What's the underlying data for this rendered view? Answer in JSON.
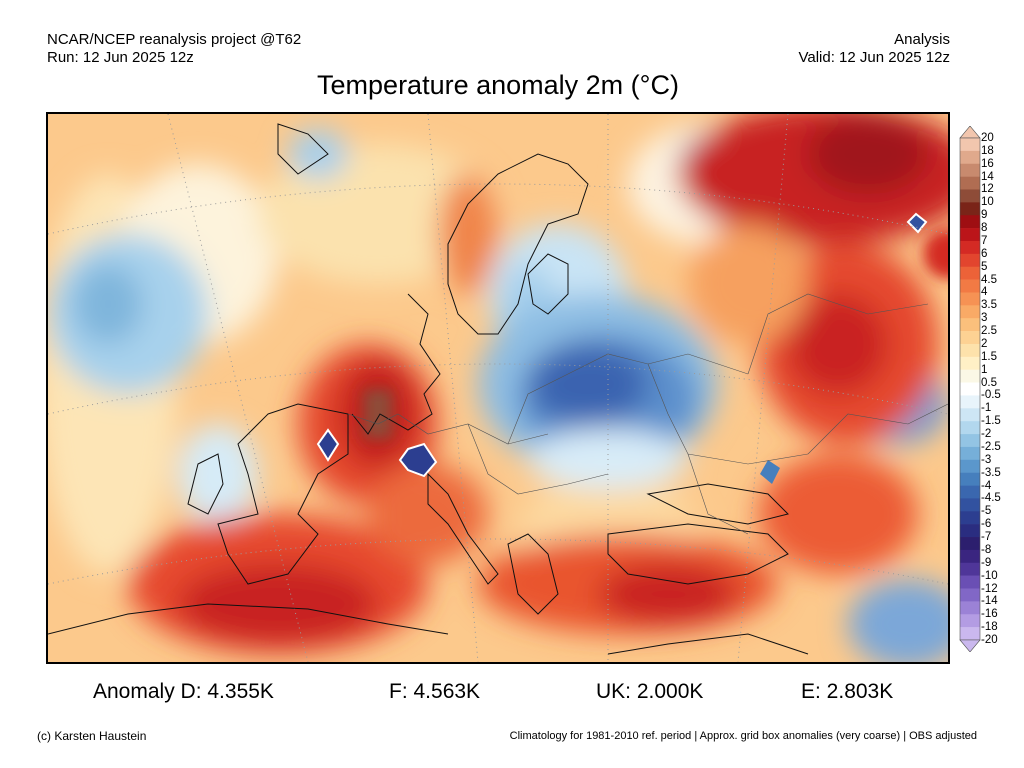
{
  "header": {
    "left_line1": "NCAR/NCEP reanalysis project @T62",
    "left_line2": "Run: 12 Jun 2025 12z",
    "right_line1": "Analysis",
    "right_line2": "Valid: 12 Jun 2025 12z"
  },
  "title": "Temperature anomaly 2m (°C)",
  "colorbar": {
    "labels": [
      "20",
      "18",
      "16",
      "14",
      "12",
      "10",
      "9",
      "8",
      "7",
      "6",
      "5",
      "4.5",
      "4",
      "3.5",
      "3",
      "2.5",
      "2",
      "1.5",
      "1",
      "0.5",
      "-0.5",
      "-1",
      "-1.5",
      "-2",
      "-2.5",
      "-3",
      "-3.5",
      "-4",
      "-4.5",
      "-5",
      "-6",
      "-7",
      "-8",
      "-9",
      "-10",
      "-12",
      "-14",
      "-16",
      "-18",
      "-20"
    ],
    "colors": [
      "#f2c6ae",
      "#e0a98c",
      "#c88a6e",
      "#b06d52",
      "#8e4c38",
      "#7a2418",
      "#9e0e12",
      "#bb1519",
      "#d42a24",
      "#e2452e",
      "#ec6238",
      "#f27a44",
      "#f69254",
      "#f9aa66",
      "#fbc07c",
      "#fdd293",
      "#fde2ab",
      "#fff0c6",
      "#fbf8e6",
      "#ffffff",
      "#e8f4fb",
      "#cde6f5",
      "#b2d7ee",
      "#93c4e4",
      "#76afd9",
      "#5b97cc",
      "#467fbd",
      "#3a67af",
      "#3252a0",
      "#2c3e90",
      "#2a2d80",
      "#2c1f6e",
      "#3a2580",
      "#4f3699",
      "#6a4fb4",
      "#8167c6",
      "#9b82d6",
      "#b39ce3",
      "#cab8ee"
    ]
  },
  "stats": {
    "d": "Anomaly D: 4.355K",
    "f": "F: 4.563K",
    "uk": "UK: 2.000K",
    "e": "E: 2.803K"
  },
  "footer": {
    "credit": "(c) Karsten Haustein",
    "note": "Climatology for 1981-2010 ref. period | Approx. grid box anomalies (very coarse) | OBS adjusted"
  }
}
